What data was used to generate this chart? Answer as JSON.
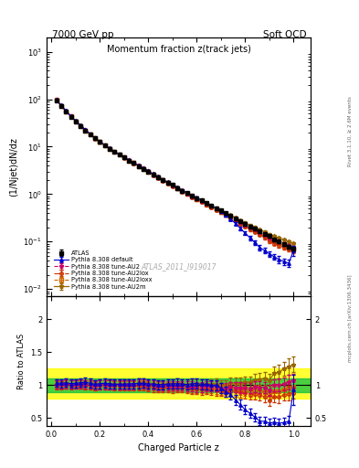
{
  "title": "Momentum fraction z(track jets)",
  "top_left_label": "7000 GeV pp",
  "top_right_label": "Soft QCD",
  "right_label_top": "Rivet 3.1.10, ≥ 2.6M events",
  "right_label_bottom": "mcplots.cern.ch [arXiv:1306.3436]",
  "xlabel": "Charged Particle z",
  "ylabel_main": "(1/Njet)dN/dz",
  "ylabel_ratio": "Ratio to ATLAS",
  "watermark": "ATLAS_2011_I919017",
  "ylim_main": [
    0.007,
    2000
  ],
  "ylim_ratio": [
    0.38,
    2.35
  ],
  "xlim": [
    -0.02,
    1.07
  ],
  "z_values": [
    0.02,
    0.04,
    0.06,
    0.08,
    0.1,
    0.12,
    0.14,
    0.16,
    0.18,
    0.2,
    0.22,
    0.24,
    0.26,
    0.28,
    0.3,
    0.32,
    0.34,
    0.36,
    0.38,
    0.4,
    0.42,
    0.44,
    0.46,
    0.48,
    0.5,
    0.52,
    0.54,
    0.56,
    0.58,
    0.6,
    0.62,
    0.64,
    0.66,
    0.68,
    0.7,
    0.72,
    0.74,
    0.76,
    0.78,
    0.8,
    0.82,
    0.84,
    0.86,
    0.88,
    0.9,
    0.92,
    0.94,
    0.96,
    0.98,
    1.0
  ],
  "atlas_y": [
    95,
    72,
    55,
    43,
    34,
    27,
    22,
    18,
    15,
    12.5,
    10.5,
    9.0,
    7.8,
    6.8,
    5.9,
    5.1,
    4.5,
    3.9,
    3.4,
    3.0,
    2.6,
    2.3,
    2.0,
    1.75,
    1.55,
    1.35,
    1.18,
    1.05,
    0.92,
    0.82,
    0.73,
    0.64,
    0.57,
    0.5,
    0.45,
    0.4,
    0.35,
    0.31,
    0.27,
    0.24,
    0.21,
    0.185,
    0.165,
    0.145,
    0.13,
    0.11,
    0.1,
    0.088,
    0.078,
    0.07
  ],
  "atlas_yerr": [
    4,
    3,
    2.5,
    2,
    1.5,
    1.2,
    1.0,
    0.85,
    0.7,
    0.6,
    0.5,
    0.45,
    0.38,
    0.33,
    0.29,
    0.25,
    0.22,
    0.19,
    0.17,
    0.15,
    0.13,
    0.11,
    0.1,
    0.09,
    0.08,
    0.07,
    0.06,
    0.055,
    0.05,
    0.045,
    0.04,
    0.035,
    0.03,
    0.028,
    0.025,
    0.022,
    0.02,
    0.018,
    0.016,
    0.014,
    0.012,
    0.011,
    0.01,
    0.009,
    0.008,
    0.007,
    0.007,
    0.006,
    0.006,
    0.005
  ],
  "pythia_default_y": [
    98,
    74,
    57,
    44,
    35,
    28,
    23,
    18.5,
    15.2,
    12.8,
    10.8,
    9.2,
    7.9,
    6.9,
    6.0,
    5.2,
    4.6,
    4.0,
    3.5,
    3.05,
    2.65,
    2.32,
    2.02,
    1.78,
    1.58,
    1.38,
    1.2,
    1.06,
    0.94,
    0.84,
    0.74,
    0.65,
    0.57,
    0.5,
    0.43,
    0.36,
    0.3,
    0.24,
    0.19,
    0.15,
    0.12,
    0.095,
    0.075,
    0.065,
    0.055,
    0.048,
    0.042,
    0.038,
    0.035,
    0.065
  ],
  "pythia_default_yerr": [
    4,
    3,
    2.5,
    2,
    1.5,
    1.2,
    1.0,
    0.85,
    0.7,
    0.6,
    0.5,
    0.45,
    0.38,
    0.33,
    0.29,
    0.25,
    0.22,
    0.19,
    0.17,
    0.15,
    0.13,
    0.11,
    0.1,
    0.09,
    0.08,
    0.07,
    0.06,
    0.055,
    0.05,
    0.045,
    0.04,
    0.035,
    0.03,
    0.028,
    0.025,
    0.022,
    0.02,
    0.018,
    0.016,
    0.014,
    0.012,
    0.011,
    0.01,
    0.009,
    0.008,
    0.007,
    0.007,
    0.006,
    0.006,
    0.015
  ],
  "pythia_au2_y": [
    96,
    73,
    56,
    43.5,
    34.5,
    27.5,
    22.2,
    18.2,
    15.0,
    12.6,
    10.6,
    9.1,
    7.85,
    6.85,
    5.95,
    5.15,
    4.55,
    3.95,
    3.45,
    3.02,
    2.62,
    2.28,
    1.98,
    1.74,
    1.54,
    1.34,
    1.17,
    1.03,
    0.9,
    0.8,
    0.71,
    0.63,
    0.56,
    0.49,
    0.43,
    0.38,
    0.34,
    0.3,
    0.26,
    0.23,
    0.2,
    0.18,
    0.16,
    0.14,
    0.12,
    0.11,
    0.1,
    0.09,
    0.082,
    0.075
  ],
  "pythia_au2_yerr": [
    4,
    3,
    2.5,
    2,
    1.5,
    1.2,
    1.0,
    0.85,
    0.7,
    0.6,
    0.5,
    0.45,
    0.38,
    0.33,
    0.29,
    0.25,
    0.22,
    0.19,
    0.17,
    0.15,
    0.13,
    0.11,
    0.1,
    0.09,
    0.08,
    0.07,
    0.06,
    0.055,
    0.05,
    0.045,
    0.04,
    0.035,
    0.03,
    0.028,
    0.025,
    0.022,
    0.02,
    0.018,
    0.016,
    0.014,
    0.012,
    0.011,
    0.01,
    0.009,
    0.008,
    0.007,
    0.007,
    0.006,
    0.006,
    0.005
  ],
  "pythia_au2lox_y": [
    95,
    72,
    55.5,
    43.2,
    34.2,
    27.2,
    22.0,
    18.0,
    14.8,
    12.5,
    10.5,
    9.0,
    7.75,
    6.75,
    5.85,
    5.05,
    4.45,
    3.85,
    3.35,
    2.92,
    2.52,
    2.2,
    1.92,
    1.68,
    1.48,
    1.3,
    1.13,
    1.0,
    0.87,
    0.77,
    0.68,
    0.6,
    0.53,
    0.46,
    0.41,
    0.36,
    0.32,
    0.28,
    0.24,
    0.21,
    0.18,
    0.16,
    0.14,
    0.12,
    0.1,
    0.09,
    0.082,
    0.075,
    0.068,
    0.062
  ],
  "pythia_au2lox_yerr": [
    4,
    3,
    2.5,
    2,
    1.5,
    1.2,
    1.0,
    0.85,
    0.7,
    0.6,
    0.5,
    0.45,
    0.38,
    0.33,
    0.29,
    0.25,
    0.22,
    0.19,
    0.17,
    0.15,
    0.13,
    0.11,
    0.1,
    0.09,
    0.08,
    0.07,
    0.06,
    0.055,
    0.05,
    0.045,
    0.04,
    0.035,
    0.03,
    0.028,
    0.025,
    0.022,
    0.02,
    0.018,
    0.016,
    0.014,
    0.012,
    0.011,
    0.01,
    0.009,
    0.008,
    0.007,
    0.007,
    0.006,
    0.006,
    0.005
  ],
  "pythia_au2loxx_y": [
    96,
    73,
    56,
    43.5,
    34.3,
    27.3,
    22.1,
    18.1,
    14.9,
    12.6,
    10.6,
    9.05,
    7.8,
    6.8,
    5.9,
    5.1,
    4.5,
    3.9,
    3.4,
    2.97,
    2.57,
    2.24,
    1.95,
    1.71,
    1.51,
    1.32,
    1.15,
    1.01,
    0.88,
    0.78,
    0.7,
    0.61,
    0.54,
    0.47,
    0.42,
    0.37,
    0.33,
    0.29,
    0.25,
    0.22,
    0.19,
    0.17,
    0.15,
    0.13,
    0.11,
    0.1,
    0.091,
    0.082,
    0.075,
    0.068
  ],
  "pythia_au2loxx_yerr": [
    4,
    3,
    2.5,
    2,
    1.5,
    1.2,
    1.0,
    0.85,
    0.7,
    0.6,
    0.5,
    0.45,
    0.38,
    0.33,
    0.29,
    0.25,
    0.22,
    0.19,
    0.17,
    0.15,
    0.13,
    0.11,
    0.1,
    0.09,
    0.08,
    0.07,
    0.06,
    0.055,
    0.05,
    0.045,
    0.04,
    0.035,
    0.03,
    0.028,
    0.025,
    0.022,
    0.02,
    0.018,
    0.016,
    0.014,
    0.012,
    0.011,
    0.01,
    0.009,
    0.008,
    0.007,
    0.007,
    0.006,
    0.006,
    0.005
  ],
  "pythia_au2m_y": [
    97,
    73.5,
    56.5,
    44,
    34.8,
    27.7,
    22.4,
    18.4,
    15.1,
    12.7,
    10.7,
    9.15,
    7.9,
    6.9,
    6.0,
    5.2,
    4.6,
    4.0,
    3.5,
    3.05,
    2.65,
    2.32,
    2.02,
    1.78,
    1.58,
    1.38,
    1.2,
    1.06,
    0.93,
    0.83,
    0.74,
    0.65,
    0.58,
    0.51,
    0.45,
    0.4,
    0.36,
    0.32,
    0.28,
    0.25,
    0.22,
    0.2,
    0.18,
    0.16,
    0.14,
    0.13,
    0.12,
    0.11,
    0.1,
    0.092
  ],
  "pythia_au2m_yerr": [
    4,
    3,
    2.5,
    2,
    1.5,
    1.2,
    1.0,
    0.85,
    0.7,
    0.6,
    0.5,
    0.45,
    0.38,
    0.33,
    0.29,
    0.25,
    0.22,
    0.19,
    0.17,
    0.15,
    0.13,
    0.11,
    0.1,
    0.09,
    0.08,
    0.07,
    0.06,
    0.055,
    0.05,
    0.045,
    0.04,
    0.035,
    0.03,
    0.028,
    0.025,
    0.022,
    0.02,
    0.018,
    0.016,
    0.014,
    0.012,
    0.011,
    0.01,
    0.009,
    0.008,
    0.007,
    0.007,
    0.006,
    0.006,
    0.005
  ],
  "color_atlas": "#000000",
  "color_default": "#0000cc",
  "color_au2": "#cc0066",
  "color_au2lox": "#cc3300",
  "color_au2loxx": "#cc6600",
  "color_au2m": "#996600",
  "bg_yellow": "#ffff00",
  "bg_green": "#00bb44"
}
